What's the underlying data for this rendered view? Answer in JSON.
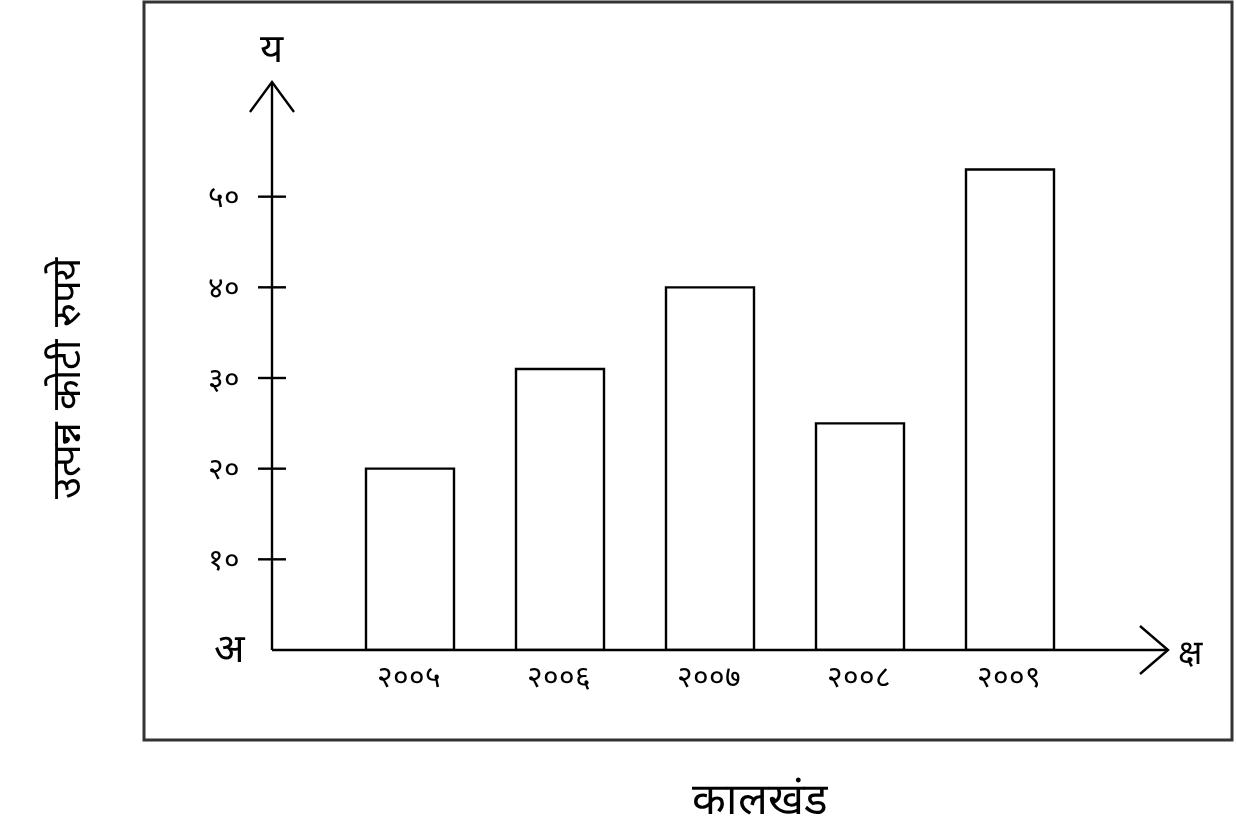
{
  "chart_data": {
    "type": "bar",
    "xlabel": "कालखंड",
    "ylabel": "उत्पन्न कोटी रुपये",
    "categories": [
      "२००५",
      "२००६",
      "२००७",
      "२००८",
      "२००९"
    ],
    "values": [
      20,
      31,
      40,
      25,
      53
    ],
    "color": "#ffffff",
    "ylim": [
      0,
      60
    ],
    "yticks": [
      {
        "value": 10,
        "label": "१०"
      },
      {
        "value": 20,
        "label": "२०"
      },
      {
        "value": 30,
        "label": "३०"
      },
      {
        "value": 40,
        "label": "४०"
      },
      {
        "value": 50,
        "label": "५०"
      }
    ],
    "grid": false,
    "legend": false,
    "annotations": [
      "य",
      "क्ष",
      "अ"
    ]
  }
}
